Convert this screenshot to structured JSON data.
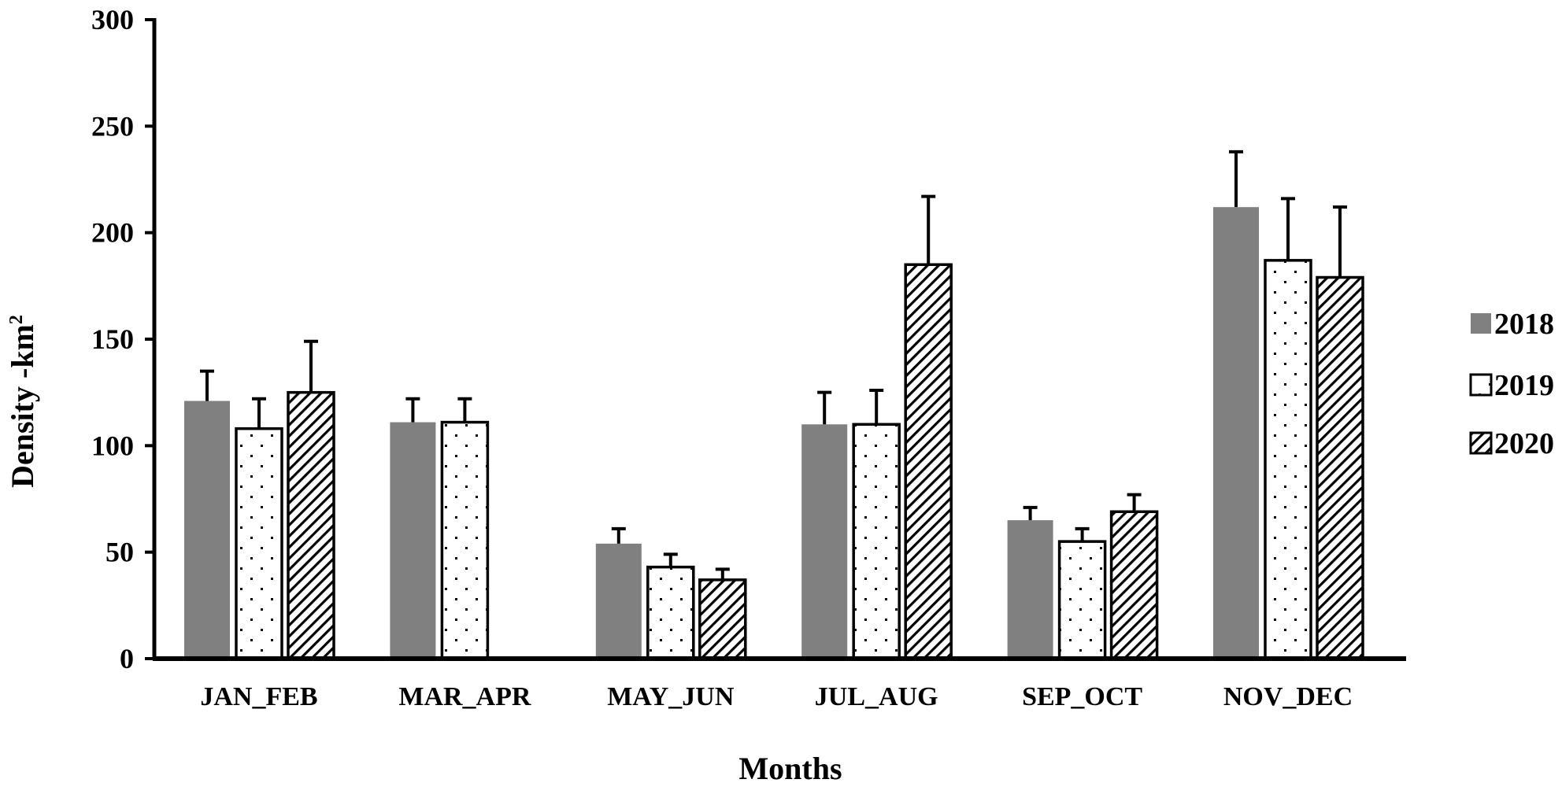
{
  "chart_data": {
    "type": "bar",
    "title": "",
    "xlabel": "Months",
    "ylabel": "Density -km",
    "ylabel_superscript": "2",
    "ylim": [
      0,
      300
    ],
    "yticks": [
      0,
      50,
      100,
      150,
      200,
      250,
      300
    ],
    "grid": false,
    "legend_position": "right",
    "categories": [
      "JAN_FEB",
      "MAR_APR",
      "MAY_JUN",
      "JUL_AUG",
      "SEP_OCT",
      "NOV_DEC"
    ],
    "series": [
      {
        "name": "2018",
        "pattern": "solid-gray",
        "color": "#808080",
        "values": [
          121,
          111,
          54,
          110,
          65,
          212
        ],
        "errors": [
          14,
          11,
          7,
          15,
          6,
          26
        ]
      },
      {
        "name": "2019",
        "pattern": "dots",
        "color": "#ffffff",
        "values": [
          108,
          111,
          43,
          110,
          55,
          187
        ],
        "errors": [
          14,
          11,
          6,
          16,
          6,
          29
        ]
      },
      {
        "name": "2020",
        "pattern": "diagonal-hatch",
        "color": "#ffffff",
        "values": [
          125,
          null,
          37,
          185,
          69,
          179
        ],
        "errors": [
          24,
          null,
          5,
          32,
          8,
          33
        ]
      }
    ]
  }
}
